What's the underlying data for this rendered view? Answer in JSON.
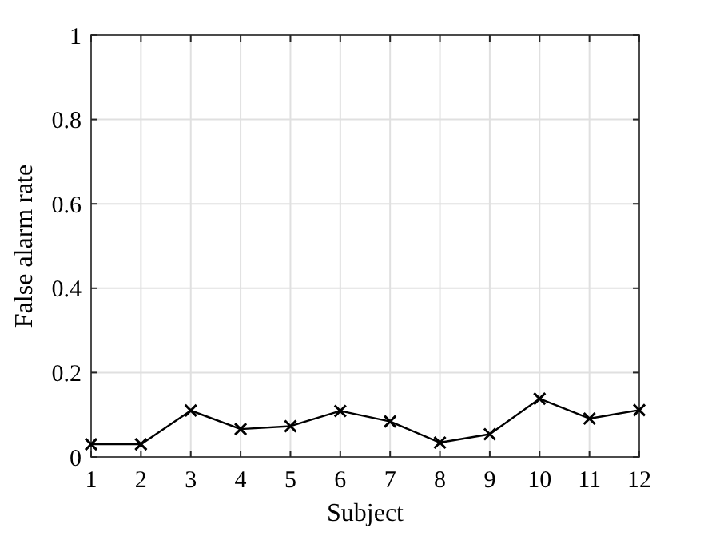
{
  "chart_data": {
    "type": "line",
    "xlabel": "Subject",
    "ylabel": "False alarm rate",
    "x": [
      1,
      2,
      3,
      4,
      5,
      6,
      7,
      8,
      9,
      10,
      11,
      12
    ],
    "series": [
      {
        "color": "#000000",
        "values": [
          0.03,
          0.03,
          0.11,
          0.066,
          0.073,
          0.109,
          0.084,
          0.034,
          0.054,
          0.138,
          0.091,
          0.111
        ]
      }
    ],
    "xlim": [
      1,
      12
    ],
    "xticks": [
      1,
      2,
      3,
      4,
      5,
      6,
      7,
      8,
      9,
      10,
      11,
      12
    ],
    "ylim": [
      0,
      1
    ],
    "yticks": [
      0,
      0.2,
      0.4,
      0.6,
      0.8,
      1
    ],
    "grid": true,
    "marker": "cross",
    "line_style": "solid"
  }
}
